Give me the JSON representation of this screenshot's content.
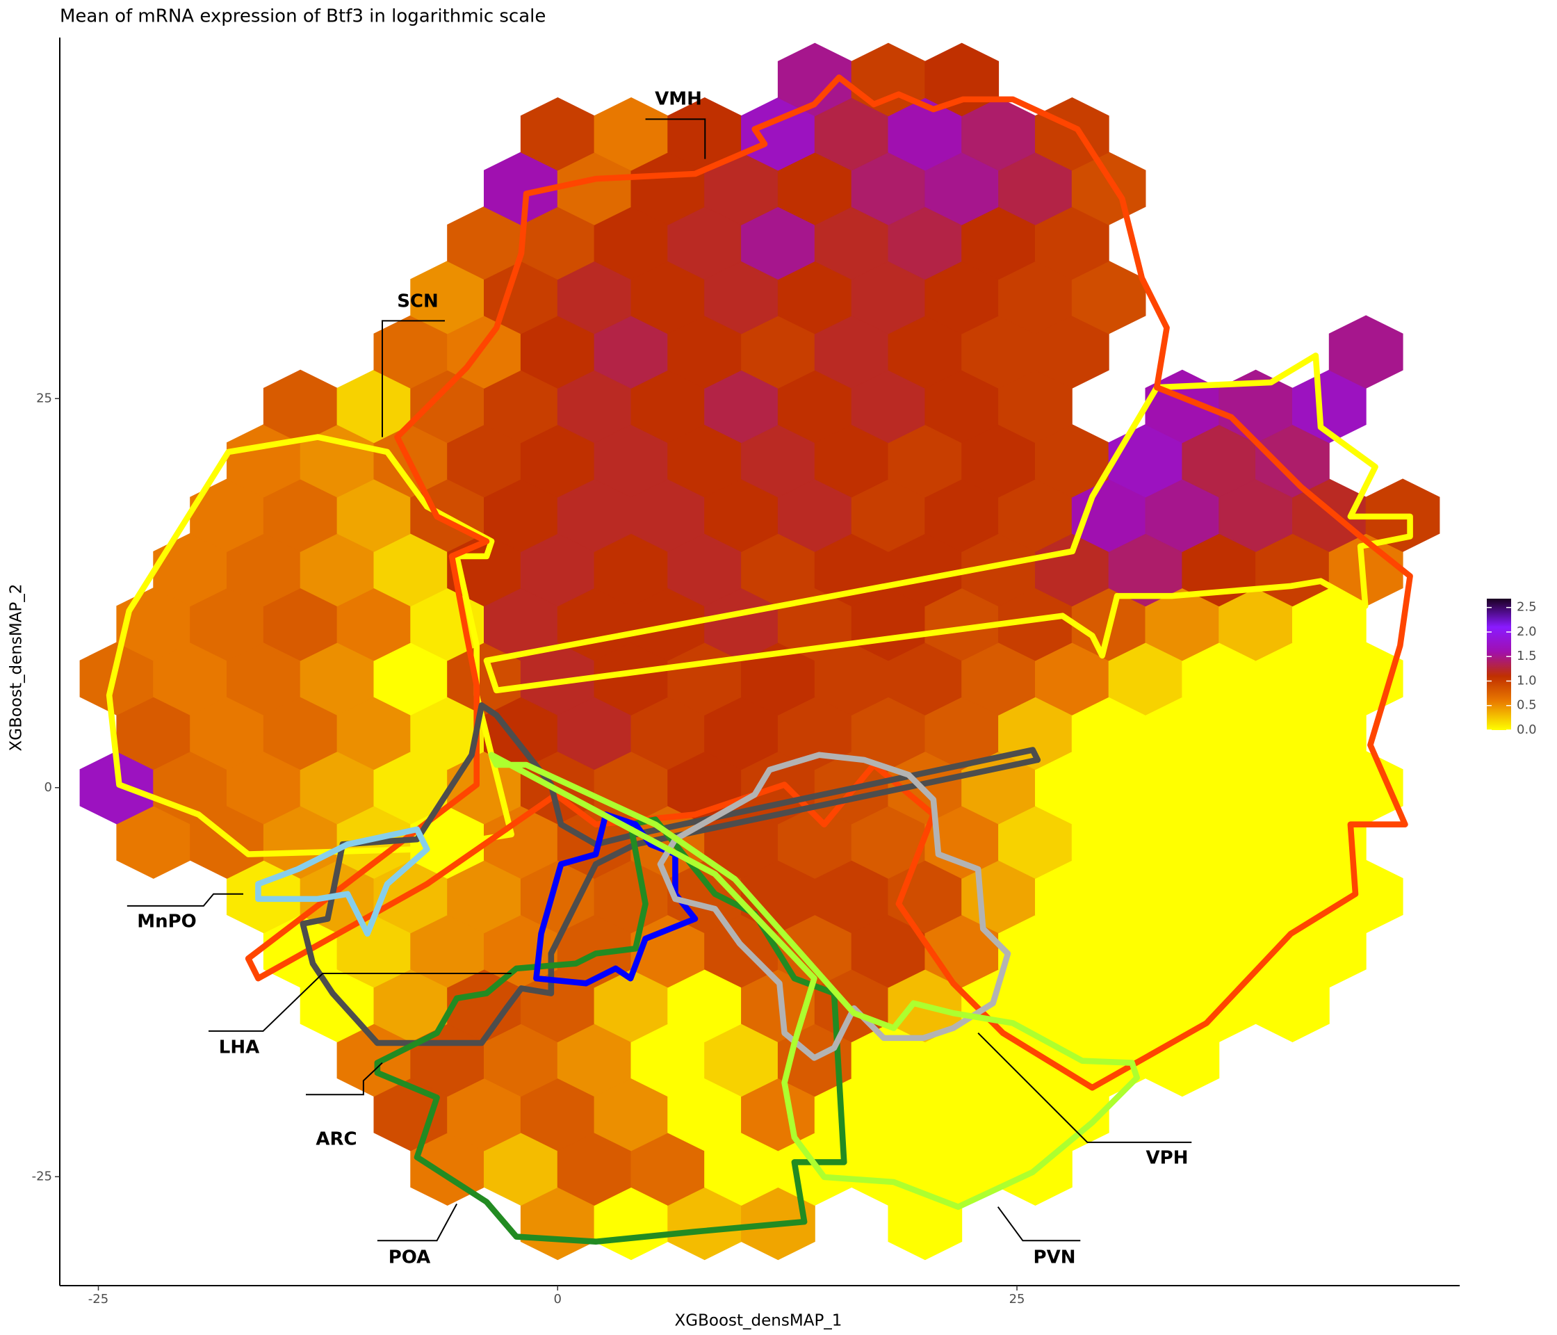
{
  "chart_data": {
    "type": "hexbin",
    "title": "Mean of mRNA expression of Btf3 in logarithmic scale",
    "x_label": "XGBoost_densMAP_1",
    "y_label": "XGBoost_densMAP_2",
    "xlim": [
      -27.1,
      49.1
    ],
    "ylim": [
      -32,
      48.2
    ],
    "xticks": [
      -25,
      0,
      25
    ],
    "yticks": [
      -25,
      0,
      25
    ],
    "grid": false,
    "clim": [
      0,
      2.68
    ],
    "cticks": [
      {
        "value": 0,
        "label": "0.0"
      },
      {
        "value": 0.5,
        "label": "0.5"
      },
      {
        "value": 1,
        "label": "1.0"
      },
      {
        "value": 1.5,
        "label": "1.5"
      },
      {
        "value": 2,
        "label": "2.0"
      },
      {
        "value": 2.5,
        "label": "2.5"
      }
    ],
    "colorscale": [
      [
        0,
        "#ffff00"
      ],
      [
        0.6,
        "#e87800"
      ],
      [
        1.1,
        "#c03000"
      ],
      [
        1.6,
        "#a010b0"
      ],
      [
        2.1,
        "#8a1aff"
      ],
      [
        2.68,
        "#1a0020"
      ]
    ],
    "annotations": [
      "VMH",
      "SCN",
      "MnPO",
      "LHA",
      "ARC",
      "POA",
      "VPH",
      "PVN"
    ],
    "x": [
      0,
      4,
      8,
      12,
      20,
      -6,
      -2,
      2,
      6,
      10,
      14,
      18,
      22,
      26,
      -8,
      -4,
      0,
      4,
      8,
      12,
      16,
      20,
      24,
      28,
      -10,
      -6,
      -2,
      2,
      6,
      10,
      14,
      18,
      22,
      26,
      30,
      34,
      -12,
      -8,
      -4,
      0,
      4,
      8,
      12,
      16,
      20,
      24,
      28,
      32,
      36,
      40,
      -14,
      -10,
      -6,
      -2,
      2,
      6,
      10,
      14,
      18,
      22,
      26,
      30,
      34,
      38,
      42,
      -16,
      -12,
      -8,
      -4,
      0,
      4,
      8,
      12,
      16,
      20,
      24,
      28,
      32,
      36,
      40,
      44,
      -22,
      -18,
      -14,
      -10,
      -6,
      -2,
      2,
      6,
      10,
      14,
      18,
      22,
      26,
      30,
      34,
      38,
      42,
      -24,
      -20,
      -16,
      -12,
      -8,
      -4,
      0,
      4,
      8,
      12,
      16,
      20,
      24,
      28,
      32,
      36,
      40,
      44,
      -22,
      -18,
      -14,
      -10,
      -6,
      -2,
      2,
      6,
      10,
      14,
      18,
      22,
      26,
      30,
      34,
      38,
      42,
      -24,
      -20,
      -16,
      -12,
      -8,
      -4,
      0,
      4,
      8,
      12,
      16,
      20,
      24,
      28,
      32,
      36,
      40,
      44,
      -22,
      -18,
      -14,
      -10,
      -6,
      -2,
      2,
      6,
      10,
      14,
      18,
      22,
      26,
      30,
      34,
      38,
      42,
      -20,
      -16,
      -12,
      -8,
      -4,
      0,
      4,
      8,
      12,
      16,
      20,
      24,
      28,
      32,
      36,
      40,
      44,
      -18,
      -14,
      -10,
      -6,
      -2,
      2,
      6,
      10,
      14,
      18,
      22,
      26,
      30,
      34,
      38,
      42,
      46,
      -16,
      -12,
      -8,
      -4,
      0,
      4,
      8,
      12,
      16,
      20,
      24,
      28,
      32,
      36,
      40,
      -14,
      -10,
      -6,
      -2,
      2,
      6,
      10,
      14,
      18,
      22,
      26,
      34,
      38,
      42,
      -8,
      -4,
      0,
      4,
      8,
      12,
      16,
      20,
      24,
      28,
      44,
      -6,
      -2,
      2,
      6,
      10,
      14,
      18,
      22,
      26,
      30,
      -4,
      0,
      4,
      8,
      12,
      16,
      20,
      24,
      28,
      -2,
      2,
      6,
      10,
      14,
      18,
      22,
      26,
      30,
      0,
      4,
      8,
      12,
      16,
      20,
      24,
      28,
      14,
      18,
      22
    ],
    "y": [
      -28,
      -28,
      -28,
      -28,
      -28,
      -24.5,
      -24.5,
      -24.5,
      -24.5,
      -24.5,
      -24.5,
      -24.5,
      -24.5,
      -24.5,
      -21,
      -21,
      -21,
      -21,
      -21,
      -21,
      -21,
      -21,
      -21,
      -21,
      -17.5,
      -17.5,
      -17.5,
      -17.5,
      -17.5,
      -17.5,
      -17.5,
      -17.5,
      -17.5,
      -17.5,
      -17.5,
      -17.5,
      -14,
      -14,
      -14,
      -14,
      -14,
      -14,
      -14,
      -14,
      -14,
      -14,
      -14,
      -14,
      -14,
      -14,
      -10.5,
      -10.5,
      -10.5,
      -10.5,
      -10.5,
      -10.5,
      -10.5,
      -10.5,
      -10.5,
      -10.5,
      -10.5,
      -10.5,
      -10.5,
      -10.5,
      -10.5,
      -7,
      -7,
      -7,
      -7,
      -7,
      -7,
      -7,
      -7,
      -7,
      -7,
      -7,
      -7,
      -7,
      -7,
      -7,
      -7,
      -3.5,
      -3.5,
      -3.5,
      -3.5,
      -3.5,
      -3.5,
      -3.5,
      -3.5,
      -3.5,
      -3.5,
      -3.5,
      -3.5,
      -3.5,
      -3.5,
      -3.5,
      -3.5,
      -3.5,
      0,
      0,
      0,
      0,
      0,
      0,
      0,
      0,
      0,
      0,
      0,
      0,
      0,
      0,
      0,
      0,
      0,
      0,
      3.5,
      3.5,
      3.5,
      3.5,
      3.5,
      3.5,
      3.5,
      3.5,
      3.5,
      3.5,
      3.5,
      3.5,
      3.5,
      3.5,
      3.5,
      3.5,
      3.5,
      7,
      7,
      7,
      7,
      7,
      7,
      7,
      7,
      7,
      7,
      7,
      7,
      7,
      7,
      7,
      7,
      7,
      7,
      10.5,
      10.5,
      10.5,
      10.5,
      10.5,
      10.5,
      10.5,
      10.5,
      10.5,
      10.5,
      10.5,
      10.5,
      10.5,
      10.5,
      10.5,
      10.5,
      10.5,
      14,
      14,
      14,
      14,
      14,
      14,
      14,
      14,
      14,
      14,
      14,
      14,
      14,
      14,
      14,
      14,
      14,
      17.5,
      17.5,
      17.5,
      17.5,
      17.5,
      17.5,
      17.5,
      17.5,
      17.5,
      17.5,
      17.5,
      17.5,
      17.5,
      17.5,
      17.5,
      17.5,
      17.5,
      21,
      21,
      21,
      21,
      21,
      21,
      21,
      21,
      21,
      21,
      21,
      21,
      21,
      21,
      21,
      24.5,
      24.5,
      24.5,
      24.5,
      24.5,
      24.5,
      24.5,
      24.5,
      24.5,
      24.5,
      24.5,
      24.5,
      24.5,
      24.5,
      28,
      28,
      28,
      28,
      28,
      28,
      28,
      28,
      28,
      28,
      28,
      31.5,
      31.5,
      31.5,
      31.5,
      31.5,
      31.5,
      31.5,
      31.5,
      31.5,
      31.5,
      35,
      35,
      35,
      35,
      35,
      35,
      35,
      35,
      35,
      38.5,
      38.5,
      38.5,
      38.5,
      38.5,
      38.5,
      38.5,
      38.5,
      38.5,
      42,
      42,
      42,
      42,
      42,
      42,
      42,
      42,
      45.5,
      45.5,
      45.5
    ],
    "values": [
      0.5,
      0,
      0.3,
      0.4,
      0,
      0.6,
      0.3,
      0.8,
      0.7,
      0,
      0,
      0,
      0,
      0,
      0.9,
      0.6,
      0.8,
      0.5,
      0,
      0.6,
      0,
      0,
      0,
      0,
      0.6,
      0.9,
      0.7,
      0.5,
      0,
      0.2,
      0.8,
      0,
      0,
      0,
      0,
      0,
      0,
      0.4,
      0.9,
      0.8,
      0.3,
      0,
      0.7,
      0.9,
      0.3,
      0,
      0,
      0,
      0,
      0,
      0,
      0.2,
      0.5,
      0.6,
      0.8,
      0.6,
      0.9,
      0.8,
      1.0,
      0.6,
      0,
      0,
      0,
      0,
      0,
      0.1,
      0.4,
      0.3,
      0.5,
      0.7,
      0.8,
      0.9,
      1.0,
      1.0,
      0.9,
      0.4,
      0,
      0,
      0,
      0,
      0,
      0.6,
      0.7,
      0.5,
      0.2,
      0,
      0.6,
      0.9,
      0.7,
      1.0,
      0.9,
      0.8,
      0.6,
      0.2,
      0,
      0,
      0,
      0,
      1.7,
      0.7,
      0.6,
      0.4,
      0.1,
      0.5,
      1.0,
      0.9,
      1.1,
      1.0,
      0.9,
      0.7,
      0.4,
      0,
      0,
      0,
      0,
      0,
      0.8,
      0.6,
      0.7,
      0.5,
      0.1,
      1.1,
      1.2,
      1.0,
      1.1,
      1.0,
      0.9,
      0.8,
      0.3,
      0,
      0,
      0,
      0,
      0.7,
      0.6,
      0.7,
      0.5,
      0,
      0.9,
      1.2,
      1.1,
      1.0,
      1.1,
      1.0,
      1.0,
      0.8,
      0.6,
      0.2,
      0,
      0,
      0,
      0.6,
      0.7,
      0.8,
      0.6,
      0.1,
      1.2,
      1.1,
      1.1,
      1.2,
      1.0,
      1.1,
      0.9,
      1.0,
      0.8,
      0.5,
      0.3,
      0,
      0.6,
      0.7,
      0.5,
      0.2,
      1.1,
      1.2,
      1.1,
      1.2,
      1.0,
      1.1,
      1.1,
      1.0,
      1.2,
      1.4,
      1.1,
      1.0,
      0.6,
      0.6,
      0.7,
      0.4,
      0.9,
      1.1,
      1.2,
      1.2,
      1.1,
      1.2,
      1.0,
      1.1,
      1.0,
      1.6,
      1.5,
      1.3,
      1.2,
      1.0,
      0.6,
      0.5,
      0.7,
      1.0,
      1.1,
      1.2,
      1.1,
      1.2,
      1.1,
      1.0,
      1.1,
      1.0,
      1.7,
      1.3,
      1.4,
      0.8,
      0.2,
      0.8,
      1.0,
      1.2,
      1.1,
      1.3,
      1.1,
      1.2,
      1.1,
      1.0,
      1.6,
      1.5,
      1.7,
      0.7,
      0.6,
      1.1,
      1.3,
      1.1,
      1.0,
      1.2,
      1.1,
      1.0,
      1.0,
      1.5,
      0.5,
      1.0,
      1.2,
      1.1,
      1.2,
      1.1,
      1.2,
      1.1,
      1.0,
      0.9,
      0.8,
      0.9,
      1.1,
      1.2,
      1.5,
      1.2,
      1.3,
      1.1,
      1.0,
      1.6,
      0.7,
      1.1,
      1.2,
      1.1,
      1.4,
      1.5,
      1.3,
      0.9,
      1.0,
      0.6,
      1.1,
      1.7,
      1.3,
      1.6,
      1.4,
      1.0,
      1.5,
      1.0,
      1.1
    ]
  }
}
